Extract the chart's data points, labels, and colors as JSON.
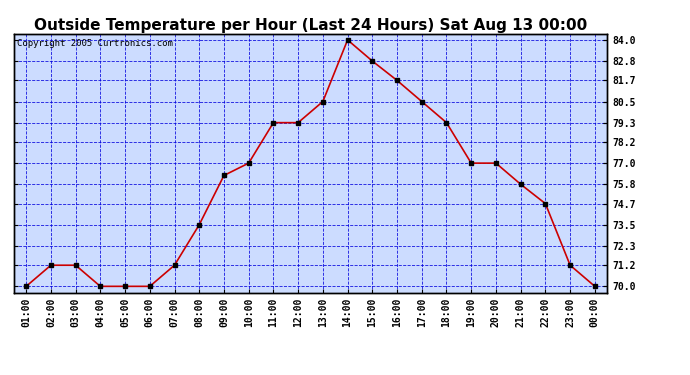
{
  "title": "Outside Temperature per Hour (Last 24 Hours) Sat Aug 13 00:00",
  "copyright": "Copyright 2005 Curtronics.com",
  "hours": [
    "01:00",
    "02:00",
    "03:00",
    "04:00",
    "05:00",
    "06:00",
    "07:00",
    "08:00",
    "09:00",
    "10:00",
    "11:00",
    "12:00",
    "13:00",
    "14:00",
    "15:00",
    "16:00",
    "17:00",
    "18:00",
    "19:00",
    "20:00",
    "21:00",
    "22:00",
    "23:00",
    "00:00"
  ],
  "temperatures": [
    70.0,
    71.2,
    71.2,
    70.0,
    70.0,
    70.0,
    71.2,
    73.5,
    76.3,
    77.0,
    79.3,
    79.3,
    80.5,
    84.0,
    82.8,
    81.7,
    80.5,
    79.3,
    77.0,
    77.0,
    75.8,
    74.7,
    71.2,
    70.0
  ],
  "yticks": [
    70.0,
    71.2,
    72.3,
    73.5,
    74.7,
    75.8,
    77.0,
    78.2,
    79.3,
    80.5,
    81.7,
    82.8,
    84.0
  ],
  "ymin": 69.65,
  "ymax": 84.35,
  "line_color": "#cc0000",
  "marker_color": "#000000",
  "grid_color": "#0000dd",
  "bg_color": "#ccdcff",
  "title_fontsize": 11,
  "copyright_fontsize": 6.5,
  "tick_fontsize": 7.0
}
